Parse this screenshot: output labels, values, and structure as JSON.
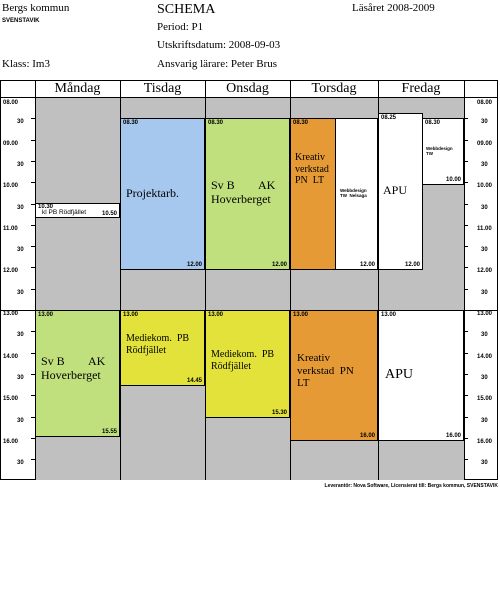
{
  "header": {
    "school": "Bergs kommun",
    "municipality": "SVENSTAVIK",
    "doc_title": "SCHEMA",
    "period": "Period: P1",
    "print_date": "Utskriftsdatum: 2008-09-03",
    "teacher": "Ansvarig lärare: Peter Brus",
    "school_year": "Läsåret 2008-2009",
    "class": "Klass: Im3"
  },
  "days": [
    "Måndag",
    "Tisdag",
    "Onsdag",
    "Torsdag",
    "Fredag"
  ],
  "times": [
    "08.00",
    "30",
    "09.00",
    "30",
    "10.00",
    "30",
    "11.00",
    "30",
    "12.00",
    "30",
    "13.00",
    "30",
    "14.00",
    "30",
    "15.00",
    "30",
    "16.00",
    "30"
  ],
  "lessons": {
    "mon_note": {
      "start": "10.30",
      "end": "10.50",
      "title": "kl PB Rödfjället"
    },
    "mon_svb": {
      "start": "13.00",
      "end": "15.55",
      "title": "Sv B        AK\nHoverberget"
    },
    "tue_proj": {
      "start": "08.30",
      "end": "12.00",
      "title": "Projektarb."
    },
    "tue_media": {
      "start": "13.00",
      "end": "14.45",
      "title": "Mediekom.  PB\nRödfjället"
    },
    "wed_svb": {
      "start": "08.30",
      "end": "12.00",
      "title": "Sv B        AK\nHoverberget"
    },
    "wed_media": {
      "start": "13.00",
      "end": "15.30",
      "title": "Mediekom.  PB\nRödfjället"
    },
    "thu_kreativ": {
      "start": "08.30",
      "end": "",
      "title": "Kreativ\nverkstad\nPN  LT"
    },
    "thu_webb": {
      "start": "",
      "end": "12.00",
      "title": "Webbdesign\nTW  Nelsaga"
    },
    "thu_kreativ2": {
      "start": "13.00",
      "end": "16.00",
      "title": "Kreativ\nverkstad  PN\nLT"
    },
    "fri_apu": {
      "start": "08.25",
      "end": "12.00",
      "title": "APU"
    },
    "fri_webb": {
      "start": "08.30",
      "end": "10.00",
      "title": "Webbdesign\nTW"
    },
    "fri_apu2": {
      "start": "13.00",
      "end": "16.00",
      "title": "APU"
    }
  },
  "colors": {
    "gray": "#c0c0c0",
    "blue": "#a6c8ee",
    "green": "#bfe07c",
    "orange": "#e59a35",
    "yellow": "#e2e23a"
  },
  "footer": "Leverantör: Nova Software, Licensierat till: Bergs kommun, SVENSTAVIK"
}
